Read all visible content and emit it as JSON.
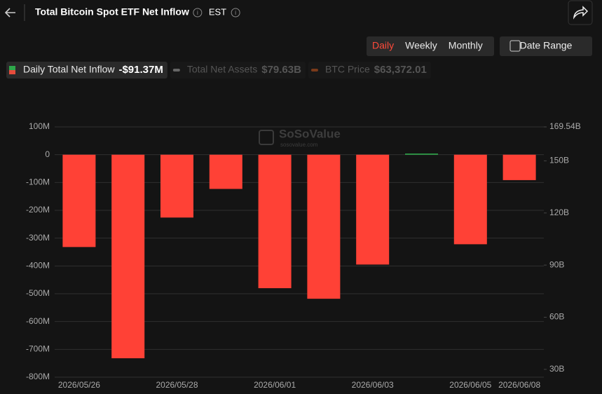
{
  "header": {
    "title": "Total Bitcoin Spot ETF Net Inflow",
    "timezone": "EST"
  },
  "controls": {
    "periods": [
      "Daily",
      "Weekly",
      "Monthly"
    ],
    "active_period": 0,
    "date_range": "Date Range"
  },
  "legend": [
    {
      "name": "Daily Total Net Inflow",
      "value": "-$91.37M",
      "color": "#e74c3c",
      "active": true
    },
    {
      "name": "Total Net Assets",
      "value": "$79.63B",
      "color": "#666666",
      "active": false
    },
    {
      "name": "BTC Price",
      "value": "$63,372.01",
      "color": "#7a3a1a",
      "active": false
    }
  ],
  "watermark": {
    "brand": "SoSoValue",
    "site": "sosovalue.com"
  },
  "chart_data": {
    "type": "bar",
    "categories": [
      "2026/05/26",
      null,
      "2026/05/28",
      null,
      "2026/06/01",
      null,
      "2026/06/03",
      null,
      "2026/06/05",
      "2026/06/08"
    ],
    "values": [
      -332,
      -732,
      -226,
      -123,
      -480,
      -518,
      -395,
      4,
      -322,
      -91.37
    ],
    "positive_color": "#2ea84a",
    "negative_color": "#ff4136",
    "ylim": [
      -800,
      100
    ],
    "yticks": [
      {
        "value": 100,
        "label": "100M"
      },
      0,
      {
        "value": -100,
        "label": "-100M"
      },
      {
        "value": -200,
        "label": "-200M"
      },
      {
        "value": -300,
        "label": "-300M"
      },
      {
        "value": -400,
        "label": "-400M"
      },
      {
        "value": -500,
        "label": "-500M"
      },
      {
        "value": -600,
        "label": "-600M"
      },
      {
        "value": -700,
        "label": "-700M"
      },
      {
        "value": -800,
        "label": "-800M"
      }
    ],
    "y2lim": [
      25.5,
      169.54
    ],
    "y2ticks": [
      {
        "value": 169.54,
        "label": "169.54B"
      },
      {
        "value": 150,
        "label": "150B"
      },
      {
        "value": 120,
        "label": "120B"
      },
      {
        "value": 90,
        "label": "90B"
      },
      {
        "value": 60,
        "label": "60B"
      },
      {
        "value": 30,
        "label": "30B"
      }
    ],
    "grid": true
  }
}
